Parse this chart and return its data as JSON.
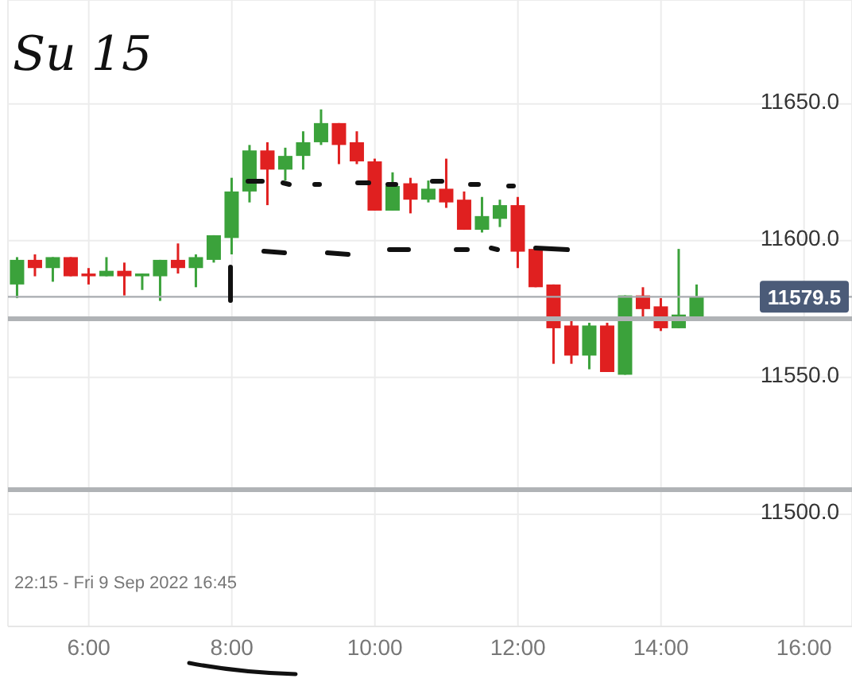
{
  "chart_data": {
    "type": "candlestick",
    "annotations": [
      "Su 15",
      "22:15 - Fri 9 Sep 2022 16:45"
    ],
    "x": [
      5,
      5.25,
      5.5,
      5.75,
      6,
      6.25,
      6.5,
      6.75,
      7,
      7.25,
      7.5,
      7.75,
      8,
      8.25,
      8.5,
      8.75,
      9,
      9.25,
      9.5,
      9.75,
      10,
      10.25,
      10.5,
      10.75,
      11,
      11.25,
      11.5,
      11.75,
      12,
      12.25,
      12.5,
      12.75,
      13,
      13.25,
      13.5,
      13.75,
      14,
      14.25,
      14.5
    ],
    "ohlc": [
      [
        11584,
        11594,
        11579,
        11593
      ],
      [
        11593,
        11595,
        11587,
        11590
      ],
      [
        11590,
        11594,
        11585,
        11594
      ],
      [
        11594,
        11594,
        11587,
        11587
      ],
      [
        11588,
        11590,
        11584,
        11587
      ],
      [
        11587,
        11594,
        11587,
        11589
      ],
      [
        11589,
        11592,
        11580,
        11587
      ],
      [
        11587,
        11588,
        11582,
        11588
      ],
      [
        11587,
        11593,
        11578,
        11593
      ],
      [
        11593,
        11599,
        11588,
        11590
      ],
      [
        11590,
        11595,
        11583,
        11594
      ],
      [
        11593,
        11602,
        11592,
        11602
      ],
      [
        11601,
        11623,
        11595,
        11618
      ],
      [
        11618,
        11635,
        11614,
        11633
      ],
      [
        11633,
        11636,
        11613,
        11626
      ],
      [
        11626,
        11634,
        11622,
        11631
      ],
      [
        11631,
        11640,
        11626,
        11636
      ],
      [
        11636,
        11648,
        11635,
        11643
      ],
      [
        11643,
        11643,
        11628,
        11635
      ],
      [
        11636,
        11640,
        11628,
        11629
      ],
      [
        11629,
        11630,
        11611,
        11611
      ],
      [
        11611,
        11625,
        11611,
        11620
      ],
      [
        11621,
        11623,
        11610,
        11615
      ],
      [
        11615,
        11622,
        11614,
        11619
      ],
      [
        11619,
        11630,
        11612,
        11614
      ],
      [
        11615,
        11618,
        11604,
        11604
      ],
      [
        11604,
        11616,
        11603,
        11609
      ],
      [
        11608,
        11615,
        11605,
        11613
      ],
      [
        11613,
        11616,
        11590,
        11596
      ],
      [
        11597,
        11597,
        11583,
        11583
      ],
      [
        11584,
        11584,
        11555,
        11568
      ],
      [
        11569,
        11572,
        11555,
        11558
      ],
      [
        11558,
        11570,
        11553,
        11569
      ],
      [
        11569,
        11570,
        11552,
        11552
      ],
      [
        11551,
        11580,
        11551,
        11580
      ],
      [
        11580,
        11583,
        11571,
        11575
      ],
      [
        11576,
        11579,
        11567,
        11568
      ],
      [
        11568,
        11597,
        11568,
        11573
      ],
      [
        11572,
        11584,
        11572,
        11579.5
      ]
    ],
    "colors": [
      "#3ba23b",
      "#e02020",
      "#3ba23b",
      "#e02020",
      "#e02020",
      "#3ba23b",
      "#e02020",
      "#3ba23b",
      "#3ba23b",
      "#e02020",
      "#3ba23b",
      "#3ba23b",
      "#3ba23b",
      "#3ba23b",
      "#e02020",
      "#3ba23b",
      "#3ba23b",
      "#3ba23b",
      "#e02020",
      "#e02020",
      "#e02020",
      "#3ba23b",
      "#e02020",
      "#3ba23b",
      "#e02020",
      "#e02020",
      "#3ba23b",
      "#3ba23b",
      "#e02020",
      "#e02020",
      "#e02020",
      "#e02020",
      "#3ba23b",
      "#e02020",
      "#3ba23b",
      "#e02020",
      "#e02020",
      "#3ba23b",
      "#3ba23b"
    ],
    "xlim": [
      4.87,
      16.67
    ],
    "xticks": [
      {
        "value": 6,
        "label": "6:00"
      },
      {
        "value": 8,
        "label": "8:00"
      },
      {
        "value": 10,
        "label": "10:00"
      },
      {
        "value": 12,
        "label": "12:00"
      },
      {
        "value": 14,
        "label": "14:00"
      },
      {
        "value": 16,
        "label": "16:00"
      }
    ],
    "ylim": [
      11459,
      11688
    ],
    "yticks": [
      {
        "value": 11500,
        "label": "11500.0"
      },
      {
        "value": 11550,
        "label": "11550.0"
      },
      {
        "value": 11600,
        "label": "11600.0"
      },
      {
        "value": 11650,
        "label": "11650.0"
      }
    ],
    "ref_lines": [
      {
        "axis": "y",
        "value": 11579.5,
        "label": "11579.5",
        "color": "#a7abb0"
      },
      {
        "axis": "y",
        "value": 11571.5,
        "label": null,
        "color": "#b0b3b6"
      },
      {
        "axis": "y",
        "value": 11509,
        "label": null,
        "color": "#b0b3b6"
      }
    ],
    "grid": true
  }
}
